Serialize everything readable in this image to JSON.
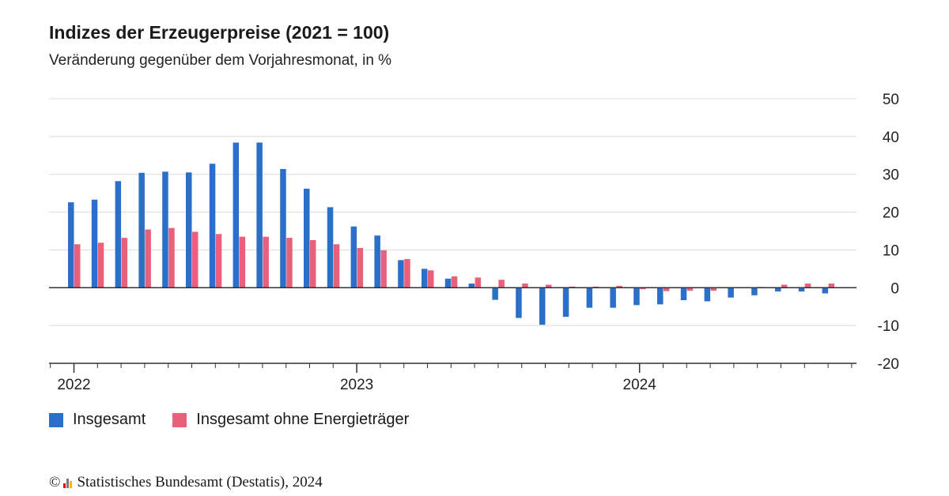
{
  "chart_data": {
    "type": "bar",
    "title": "Indizes der Erzeugerpreise (2021 = 100)",
    "subtitle": "Veränderung gegenüber dem Vorjahresmonat, in %",
    "xlabel": "",
    "ylabel": "",
    "ylim": [
      -20,
      50
    ],
    "yticks": [
      50,
      40,
      30,
      20,
      10,
      0,
      -10,
      -20
    ],
    "x_tick_labels": [
      "2022",
      "2023",
      "2024"
    ],
    "grid": true,
    "legend_position": "bottom-left",
    "months": [
      "2022-01",
      "2022-02",
      "2022-03",
      "2022-04",
      "2022-05",
      "2022-06",
      "2022-07",
      "2022-08",
      "2022-09",
      "2022-10",
      "2022-11",
      "2022-12",
      "2023-01",
      "2023-02",
      "2023-03",
      "2023-04",
      "2023-05",
      "2023-06",
      "2023-07",
      "2023-08",
      "2023-09",
      "2023-10",
      "2023-11",
      "2023-12",
      "2024-01",
      "2024-02",
      "2024-03",
      "2024-04",
      "2024-05",
      "2024-06",
      "2024-07",
      "2024-08",
      "2024-09",
      "2024-10"
    ],
    "series": [
      {
        "name": "Insgesamt",
        "color": "#2a6fc9",
        "values": [
          22.6,
          23.3,
          28.2,
          30.4,
          30.7,
          30.5,
          32.8,
          38.4,
          38.4,
          31.4,
          26.2,
          21.3,
          16.2,
          13.8,
          7.3,
          5.0,
          2.4,
          1.1,
          -3.2,
          -8.0,
          -9.8,
          -7.7,
          -5.3,
          -5.3,
          -4.6,
          -4.4,
          -3.3,
          -3.6,
          -2.6,
          -2.0,
          -1.0,
          -1.0,
          -1.5,
          0.0
        ]
      },
      {
        "name": "Insgesamt ohne Energieträger",
        "color": "#e8607a",
        "values": [
          11.5,
          11.9,
          13.2,
          15.4,
          15.8,
          14.8,
          14.2,
          13.5,
          13.5,
          13.2,
          12.6,
          11.5,
          10.5,
          9.9,
          7.6,
          4.6,
          3.0,
          2.7,
          2.1,
          1.1,
          0.8,
          0.3,
          0.3,
          0.5,
          -0.4,
          -0.9,
          -0.8,
          -0.8,
          0.0,
          0.2,
          0.8,
          1.1,
          1.1,
          0.0
        ]
      }
    ]
  },
  "legend": [
    {
      "label": "Insgesamt",
      "color": "#2a6fc9"
    },
    {
      "label": "Insgesamt ohne Energieträger",
      "color": "#e8607a"
    }
  ],
  "footer": {
    "copyright_symbol": "©",
    "source": "Statistisches Bundesamt (Destatis), 2024"
  }
}
